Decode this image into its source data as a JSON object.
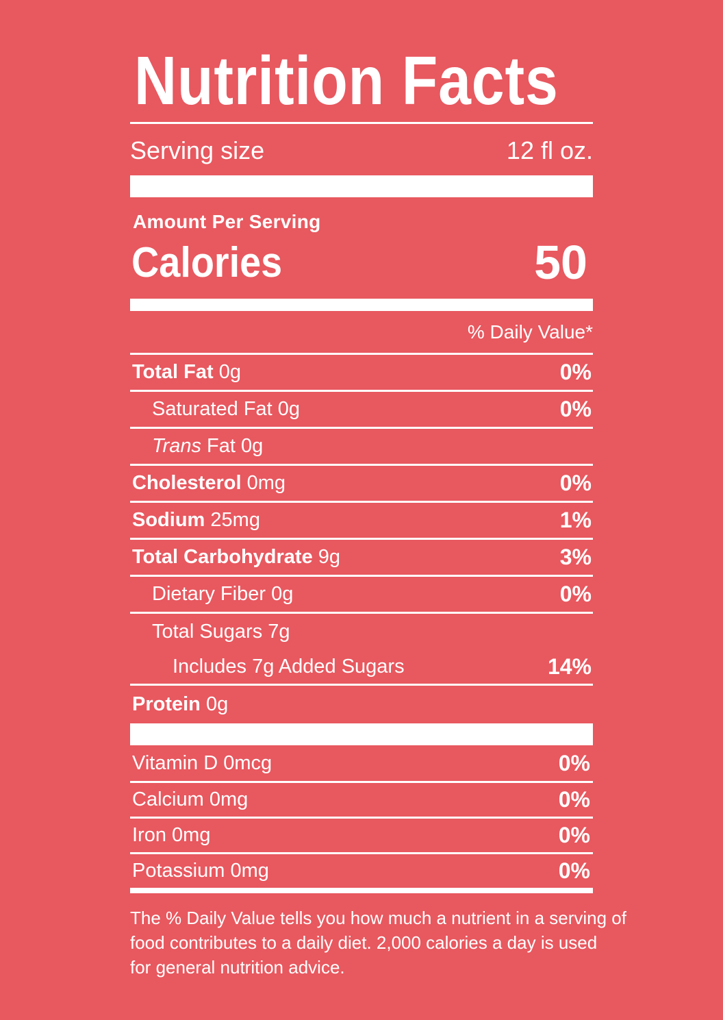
{
  "label": {
    "title": "Nutrition Facts",
    "serving_size_label": "Serving size",
    "serving_size_value": "12 fl oz.",
    "amount_per_serving": "Amount Per Serving",
    "calories_label": "Calories",
    "calories_value": "50",
    "daily_value_header": "% Daily Value*",
    "nutrients": [
      {
        "name": "Total Fat",
        "amount": "0g",
        "dv": "0%"
      },
      {
        "name": "Saturated Fat",
        "amount": "0g",
        "dv": "0%"
      },
      {
        "name": "Trans",
        "suffix": "Fat",
        "amount": "0g",
        "dv": ""
      },
      {
        "name": "Cholesterol",
        "amount": "0mg",
        "dv": "0%"
      },
      {
        "name": "Sodium",
        "amount": "25mg",
        "dv": "1%"
      },
      {
        "name": "Total Carbohydrate",
        "amount": "9g",
        "dv": "3%"
      },
      {
        "name": "Dietary Fiber",
        "amount": "0g",
        "dv": "0%"
      },
      {
        "name": "Total Sugars",
        "amount": "7g",
        "dv": ""
      },
      {
        "name": "Includes 7g Added Sugars",
        "amount": "",
        "dv": "14%"
      },
      {
        "name": "Protein",
        "amount": "0g",
        "dv": ""
      }
    ],
    "vitamins": [
      {
        "name": "Vitamin D",
        "amount": "0mcg",
        "dv": "0%"
      },
      {
        "name": "Calcium",
        "amount": "0mg",
        "dv": "0%"
      },
      {
        "name": "Iron",
        "amount": "0mg",
        "dv": "0%"
      },
      {
        "name": "Potassium",
        "amount": "0mg",
        "dv": "0%"
      }
    ],
    "footnote_lines": [
      "The % Daily Value tells you how much a nutrient in a serving of",
      "food contributes to a daily diet. 2,000 calories a day is used",
      "for general nutrition advice."
    ],
    "colors": {
      "background": "#E8585F",
      "foreground": "#FFFFFF"
    }
  }
}
